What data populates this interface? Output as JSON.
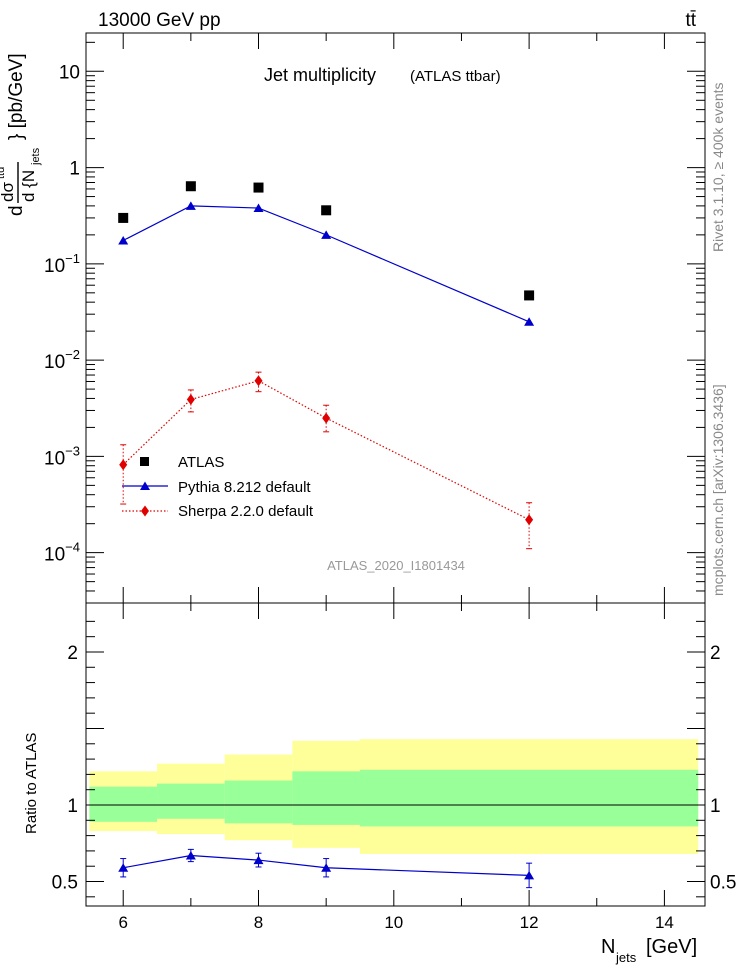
{
  "header": {
    "left": "13000 GeV pp",
    "right": "tt̄"
  },
  "side_text": {
    "upper": "Rivet 3.1.10, ≥ 400k events",
    "lower": "mcplots.cern.ch [arXiv:1306.3436]"
  },
  "colors": {
    "data": "#000000",
    "pythia": "#0000cc",
    "sherpa": "#e00000",
    "band_inner": "#99ff99",
    "band_outer": "#ffff99"
  },
  "chart_data": [
    {
      "type": "scatter",
      "title": "Jet multiplicity",
      "subtitle": "(ATLAS ttbar)",
      "watermark": "ATLAS_2020_I1801434",
      "ylabel": "d dσᵗᵗ / d {N_jets} [pb/GeV]",
      "y_scale": "log",
      "ylim": [
        3e-05,
        25
      ],
      "xlim": [
        5.45,
        14.6
      ],
      "y_ticks": [
        {
          "value": 10,
          "base": "10",
          "exp": ""
        },
        {
          "value": 1,
          "base": "1",
          "exp": ""
        },
        {
          "value": 0.1,
          "base": "10",
          "exp": "−1"
        },
        {
          "value": 0.01,
          "base": "10",
          "exp": "−2"
        },
        {
          "value": 0.001,
          "base": "10",
          "exp": "−3"
        },
        {
          "value": 0.0001,
          "base": "10",
          "exp": "−4"
        }
      ],
      "legend_position": "bottom-left",
      "series": [
        {
          "name": "ATLAS",
          "style": "square-markers",
          "x": [
            6,
            7,
            8,
            9,
            12
          ],
          "y": [
            0.3,
            0.64,
            0.62,
            0.36,
            0.047
          ]
        },
        {
          "name": "Pythia 8.212 default",
          "style": "solid-line-triangles",
          "x": [
            6,
            7,
            8,
            9,
            12
          ],
          "y": [
            0.175,
            0.4,
            0.38,
            0.2,
            0.025
          ],
          "yerr": [
            0.003,
            0.006,
            0.006,
            0.004,
            0.002
          ]
        },
        {
          "name": "Sherpa 2.2.0 default",
          "style": "dotted-line-diamonds",
          "x": [
            6,
            7,
            8,
            9,
            12
          ],
          "y": [
            0.00082,
            0.0039,
            0.0061,
            0.0025,
            0.00022
          ],
          "yerr_low": [
            0.0005,
            0.001,
            0.0014,
            0.0007,
            0.00011
          ],
          "yerr_high": [
            0.0005,
            0.001,
            0.0014,
            0.0009,
            0.00011
          ]
        }
      ]
    },
    {
      "type": "line",
      "ylabel": "Ratio to ATLAS",
      "xlabel": "N_jets [GeV]",
      "xlim": [
        5.45,
        14.6
      ],
      "ylim": [
        0.34,
        2.32
      ],
      "x_ticks": [
        6,
        8,
        10,
        12,
        14
      ],
      "y_ticks": [
        0.5,
        1,
        2
      ],
      "reference_line": 1,
      "bands": [
        {
          "x_low": 5.5,
          "x_high": 6.5,
          "inner": [
            0.89,
            1.12
          ],
          "outer": [
            0.83,
            1.22
          ]
        },
        {
          "x_low": 6.5,
          "x_high": 7.5,
          "inner": [
            0.91,
            1.14
          ],
          "outer": [
            0.81,
            1.27
          ]
        },
        {
          "x_low": 7.5,
          "x_high": 8.5,
          "inner": [
            0.88,
            1.16
          ],
          "outer": [
            0.77,
            1.33
          ]
        },
        {
          "x_low": 8.5,
          "x_high": 9.5,
          "inner": [
            0.87,
            1.22
          ],
          "outer": [
            0.72,
            1.42
          ]
        },
        {
          "x_low": 9.5,
          "x_high": 14.5,
          "inner": [
            0.86,
            1.23
          ],
          "outer": [
            0.68,
            1.43
          ]
        }
      ],
      "series": [
        {
          "name": "Pythia 8.212 default",
          "x": [
            6,
            7,
            8,
            9,
            12
          ],
          "y": [
            0.59,
            0.67,
            0.64,
            0.59,
            0.54
          ],
          "yerr": [
            0.06,
            0.04,
            0.045,
            0.06,
            0.08
          ]
        }
      ]
    }
  ]
}
